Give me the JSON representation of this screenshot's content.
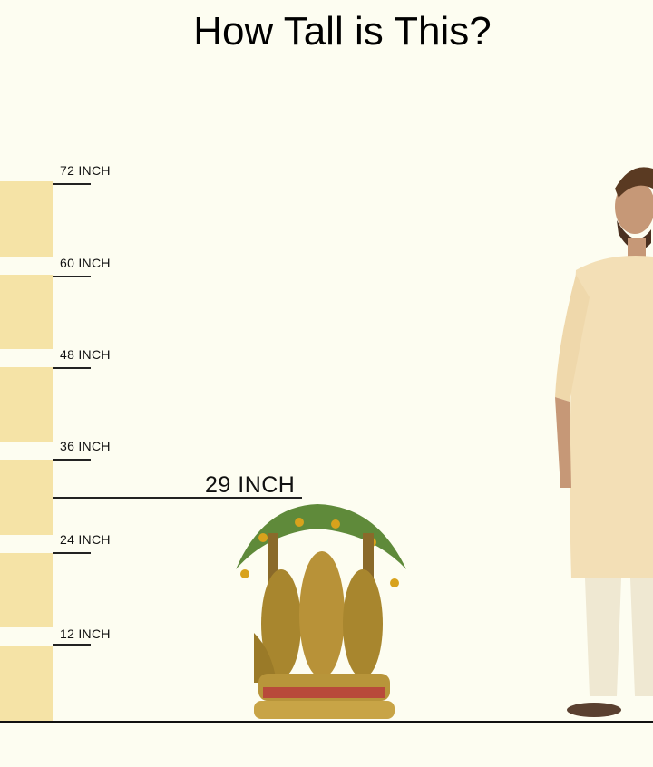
{
  "title": "How Tall is This?",
  "scale": {
    "ticks": [
      "72 INCH",
      "60 INCH",
      "48 INCH",
      "36 INCH",
      "24 INCH",
      "12 INCH"
    ],
    "bar_color": "#f5e3a6"
  },
  "product_height": {
    "label": "29 INCH",
    "value_inches": 29
  },
  "images": {
    "product": "brass-statue-under-tree",
    "reference": "standing-man-in-kurta"
  }
}
